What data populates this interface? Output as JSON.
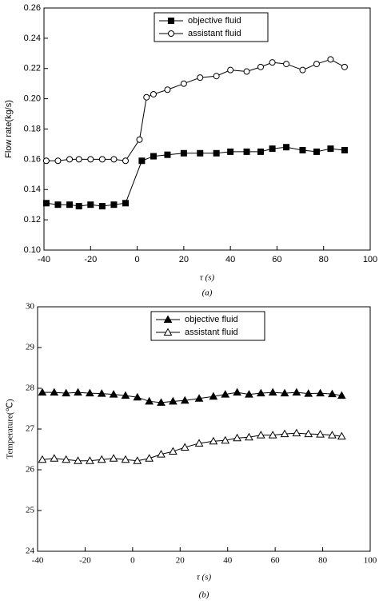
{
  "chart_data": [
    {
      "type": "line",
      "xlabel": "τ  (s)",
      "ylabel": "Flow rate(kg/s)",
      "caption": "(a)",
      "xlim": [
        -40,
        100
      ],
      "xticks": [
        -40,
        -20,
        0,
        20,
        40,
        60,
        80,
        100
      ],
      "ylim": [
        0.1,
        0.26
      ],
      "yticks": [
        {
          "value": 0.1,
          "label": "0.10"
        },
        {
          "value": 0.12,
          "label": "0.12"
        },
        {
          "value": 0.14,
          "label": "0.14"
        },
        {
          "value": 0.16,
          "label": "0.16"
        },
        {
          "value": 0.18,
          "label": "0.18"
        },
        {
          "value": 0.2,
          "label": "0.20"
        },
        {
          "value": 0.22,
          "label": "0.22"
        },
        {
          "value": 0.24,
          "label": "0.24"
        },
        {
          "value": 0.26,
          "label": "0.26"
        }
      ],
      "legend": "top-center",
      "series": [
        {
          "name": "objective fluid",
          "color": "#000000",
          "marker": "square",
          "filled": true,
          "x": [
            -39,
            -34,
            -29,
            -25,
            -20,
            -15,
            -10,
            -5,
            2,
            7,
            13,
            20,
            27,
            34,
            40,
            47,
            53,
            58,
            64,
            71,
            77,
            83,
            89
          ],
          "values": [
            0.131,
            0.13,
            0.13,
            0.129,
            0.13,
            0.129,
            0.13,
            0.131,
            0.159,
            0.162,
            0.163,
            0.164,
            0.164,
            0.164,
            0.165,
            0.165,
            0.165,
            0.167,
            0.168,
            0.166,
            0.165,
            0.167,
            0.166
          ]
        },
        {
          "name": "assistant fluid",
          "color": "#000000",
          "marker": "circle",
          "filled": false,
          "x": [
            -39,
            -34,
            -29,
            -25,
            -20,
            -15,
            -10,
            -5,
            1,
            4,
            7,
            13,
            20,
            27,
            34,
            40,
            47,
            53,
            58,
            64,
            71,
            77,
            83,
            89
          ],
          "values": [
            0.159,
            0.159,
            0.16,
            0.16,
            0.16,
            0.16,
            0.16,
            0.159,
            0.173,
            0.201,
            0.203,
            0.206,
            0.21,
            0.214,
            0.215,
            0.219,
            0.218,
            0.221,
            0.224,
            0.223,
            0.219,
            0.223,
            0.226,
            0.221
          ]
        }
      ]
    },
    {
      "type": "line",
      "xlabel": "τ  (s)",
      "ylabel": "Temperature(℃)",
      "caption": "(b)",
      "xlim": [
        -40,
        100
      ],
      "xticks": [
        -40,
        -20,
        0,
        20,
        40,
        60,
        80,
        100
      ],
      "ylim": [
        24,
        30
      ],
      "yticks": [
        24,
        25,
        26,
        27,
        28,
        29,
        30
      ],
      "legend": "top-center",
      "series": [
        {
          "name": "objective fluid",
          "color": "#000000",
          "marker": "triangle",
          "filled": true,
          "x": [
            -38,
            -33,
            -28,
            -23,
            -18,
            -13,
            -8,
            -3,
            2,
            7,
            12,
            17,
            22,
            28,
            34,
            39,
            44,
            49,
            54,
            59,
            64,
            69,
            74,
            79,
            84,
            88
          ],
          "values": [
            27.9,
            27.9,
            27.88,
            27.9,
            27.88,
            27.87,
            27.85,
            27.82,
            27.78,
            27.68,
            27.65,
            27.68,
            27.7,
            27.75,
            27.8,
            27.85,
            27.9,
            27.85,
            27.88,
            27.9,
            27.88,
            27.9,
            27.87,
            27.88,
            27.86,
            27.82
          ]
        },
        {
          "name": "assistant fluid",
          "color": "#000000",
          "marker": "triangle",
          "filled": false,
          "x": [
            -38,
            -33,
            -28,
            -23,
            -18,
            -13,
            -8,
            -3,
            2,
            7,
            12,
            17,
            22,
            28,
            34,
            39,
            44,
            49,
            54,
            59,
            64,
            69,
            74,
            79,
            84,
            88
          ],
          "values": [
            26.25,
            26.28,
            26.25,
            26.22,
            26.22,
            26.25,
            26.28,
            26.25,
            26.22,
            26.28,
            26.38,
            26.45,
            26.55,
            26.65,
            26.7,
            26.72,
            26.78,
            26.8,
            26.85,
            26.85,
            26.88,
            26.9,
            26.88,
            26.87,
            26.85,
            26.82
          ]
        }
      ]
    }
  ]
}
